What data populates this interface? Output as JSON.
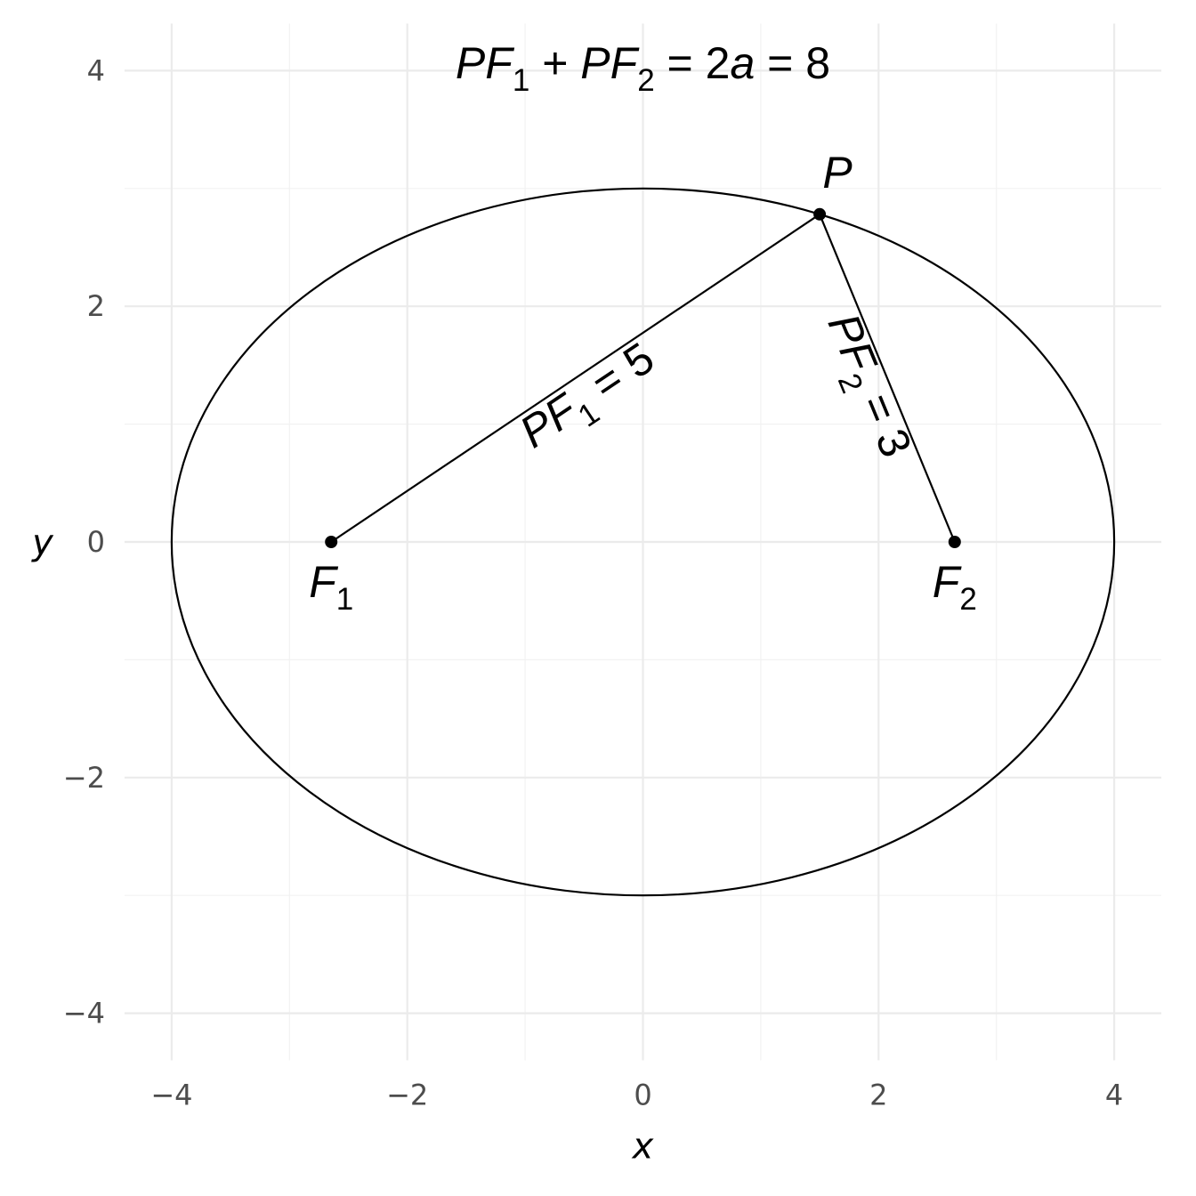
{
  "chart_data": {
    "type": "line",
    "title": "",
    "xlabel": "x",
    "ylabel": "y",
    "xlim": [
      -4.4,
      4.4
    ],
    "ylim": [
      -4.4,
      4.4
    ],
    "x_ticks": [
      -4,
      -2,
      0,
      2,
      4
    ],
    "y_ticks": [
      -4,
      -2,
      0,
      2,
      4
    ],
    "x_tick_labels": [
      "−4",
      "−2",
      "0",
      "2",
      "4"
    ],
    "y_tick_labels": [
      "−4",
      "−2",
      "0",
      "2",
      "4"
    ],
    "grid": true,
    "ellipse": {
      "center": [
        0,
        0
      ],
      "a": 4,
      "b": 3
    },
    "foci": [
      {
        "label": "F",
        "sub": "1",
        "x": -2.6458,
        "y": 0
      },
      {
        "label": "F",
        "sub": "2",
        "x": 2.6458,
        "y": 0
      }
    ],
    "point": {
      "label": "P",
      "x": 1.5,
      "y": 2.781
    },
    "segments": [
      {
        "from": "P",
        "to": "F1",
        "length": 5,
        "label": {
          "pre": "PF",
          "sub": "1",
          "post": " = 5"
        }
      },
      {
        "from": "P",
        "to": "F2",
        "length": 3,
        "label": {
          "pre": "PF",
          "sub": "2",
          "post": " = 3"
        }
      }
    ],
    "annotation": {
      "parts": [
        {
          "t": "PF",
          "it": true
        },
        {
          "t": "1",
          "sub": true
        },
        {
          "t": " + ",
          "it": false
        },
        {
          "t": "PF",
          "it": true
        },
        {
          "t": "2",
          "sub": true
        },
        {
          "t": " = 2",
          "it": false
        },
        {
          "t": "a",
          "it": true
        },
        {
          "t": " = 8",
          "it": false
        }
      ]
    }
  }
}
